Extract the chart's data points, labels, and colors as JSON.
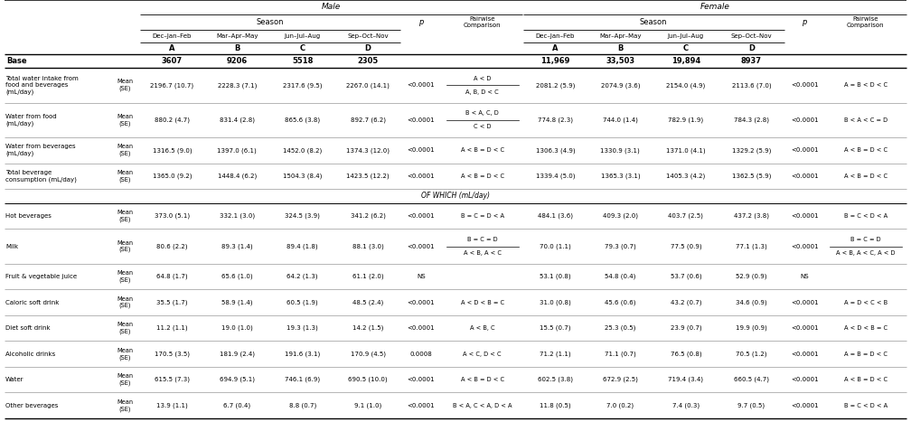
{
  "season_labels": [
    "Dec–Jan–Feb",
    "Mar–Apr–May",
    "Jun–Jul–Aug",
    "Sep–Oct–Nov"
  ],
  "abcd_labels": [
    "A",
    "B",
    "C",
    "D"
  ],
  "male_base": [
    "3607",
    "9206",
    "5518",
    "2305"
  ],
  "female_base": [
    "11,969",
    "33,503",
    "19,894",
    "8937"
  ],
  "rows": [
    {
      "label": "Total water intake from\nfood and beverages\n(mL/day)",
      "stat": "Mean\n(SE)",
      "male_vals": [
        "2196.7 (10.7)",
        "2228.3 (7.1)",
        "2317.6 (9.5)",
        "2267.0 (14.1)"
      ],
      "male_p": "<0.0001",
      "male_pairwise": [
        "A < D",
        "A, B, D < C"
      ],
      "female_vals": [
        "2081.2 (5.9)",
        "2074.9 (3.6)",
        "2154.0 (4.9)",
        "2113.6 (7.0)"
      ],
      "female_p": "<0.0001",
      "female_pairwise": "A = B < D < C",
      "separator": true
    },
    {
      "label": "Water from food\n(mL/day)",
      "stat": "Mean\n(SE)",
      "male_vals": [
        "880.2 (4.7)",
        "831.4 (2.8)",
        "865.6 (3.8)",
        "892.7 (6.2)"
      ],
      "male_p": "<0.0001",
      "male_pairwise": [
        "B < A, C, D",
        "C < D"
      ],
      "female_vals": [
        "774.8 (2.3)",
        "744.0 (1.4)",
        "782.9 (1.9)",
        "784.3 (2.8)"
      ],
      "female_p": "<0.0001",
      "female_pairwise": "B < A < C = D",
      "separator": true
    },
    {
      "label": "Water from beverages\n(mL/day)",
      "stat": "Mean\n(SE)",
      "male_vals": [
        "1316.5 (9.0)",
        "1397.0 (6.1)",
        "1452.0 (8.2)",
        "1374.3 (12.0)"
      ],
      "male_p": "<0.0001",
      "male_pairwise": "A < B = D < C",
      "female_vals": [
        "1306.3 (4.9)",
        "1330.9 (3.1)",
        "1371.0 (4.1)",
        "1329.2 (5.9)"
      ],
      "female_p": "<0.0001",
      "female_pairwise": "A < B = D < C",
      "separator": true
    },
    {
      "label": "Total beverage\nconsumption (mL/day)",
      "stat": "Mean\n(SE)",
      "male_vals": [
        "1365.0 (9.2)",
        "1448.4 (6.2)",
        "1504.3 (8.4)",
        "1423.5 (12.2)"
      ],
      "male_p": "<0.0001",
      "male_pairwise": "A < B = D < C",
      "female_vals": [
        "1339.4 (5.0)",
        "1365.3 (3.1)",
        "1405.3 (4.2)",
        "1362.5 (5.9)"
      ],
      "female_p": "<0.0001",
      "female_pairwise": "A < B = D < C",
      "separator": true
    },
    {
      "label": "OF WHICH (mL/day)",
      "stat": "",
      "male_vals": [
        "",
        "",
        "",
        ""
      ],
      "male_p": "",
      "male_pairwise": "",
      "female_vals": [
        "",
        "",
        "",
        ""
      ],
      "female_p": "",
      "female_pairwise": "",
      "separator": false,
      "italic_center": true
    },
    {
      "label": "Hot beverages",
      "stat": "Mean\n(SE)",
      "male_vals": [
        "373.0 (5.1)",
        "332.1 (3.0)",
        "324.5 (3.9)",
        "341.2 (6.2)"
      ],
      "male_p": "<0.0001",
      "male_pairwise": "B = C = D < A",
      "female_vals": [
        "484.1 (3.6)",
        "409.3 (2.0)",
        "403.7 (2.5)",
        "437.2 (3.8)"
      ],
      "female_p": "<0.0001",
      "female_pairwise": "B = C < D < A",
      "separator": true
    },
    {
      "label": "Milk",
      "stat": "Mean\n(SE)",
      "male_vals": [
        "80.6 (2.2)",
        "89.3 (1.4)",
        "89.4 (1.8)",
        "88.1 (3.0)"
      ],
      "male_p": "<0.0001",
      "male_pairwise": [
        "B = C = D",
        "A < B, A < C"
      ],
      "female_vals": [
        "70.0 (1.1)",
        "79.3 (0.7)",
        "77.5 (0.9)",
        "77.1 (1.3)"
      ],
      "female_p": "<0.0001",
      "female_pairwise": [
        "B = C = D",
        "A < B, A < C, A < D"
      ],
      "separator": true
    },
    {
      "label": "Fruit & vegetable juice",
      "stat": "Mean\n(SE)",
      "male_vals": [
        "64.8 (1.7)",
        "65.6 (1.0)",
        "64.2 (1.3)",
        "61.1 (2.0)"
      ],
      "male_p": "NS",
      "male_pairwise": "",
      "female_vals": [
        "53.1 (0.8)",
        "54.8 (0.4)",
        "53.7 (0.6)",
        "52.9 (0.9)"
      ],
      "female_p": "NS",
      "female_pairwise": "",
      "separator": true
    },
    {
      "label": "Caloric soft drink",
      "stat": "Mean\n(SE)",
      "male_vals": [
        "35.5 (1.7)",
        "58.9 (1.4)",
        "60.5 (1.9)",
        "48.5 (2.4)"
      ],
      "male_p": "<0.0001",
      "male_pairwise": "A < D < B = C",
      "female_vals": [
        "31.0 (0.8)",
        "45.6 (0.6)",
        "43.2 (0.7)",
        "34.6 (0.9)"
      ],
      "female_p": "<0.0001",
      "female_pairwise": "A = D < C < B",
      "separator": true
    },
    {
      "label": "Diet soft drink",
      "stat": "Mean\n(SE)",
      "male_vals": [
        "11.2 (1.1)",
        "19.0 (1.0)",
        "19.3 (1.3)",
        "14.2 (1.5)"
      ],
      "male_p": "<0.0001",
      "male_pairwise": "A < B, C",
      "female_vals": [
        "15.5 (0.7)",
        "25.3 (0.5)",
        "23.9 (0.7)",
        "19.9 (0.9)"
      ],
      "female_p": "<0.0001",
      "female_pairwise": "A < D < B = C",
      "separator": true
    },
    {
      "label": "Alcoholic drinks",
      "stat": "Mean\n(SE)",
      "male_vals": [
        "170.5 (3.5)",
        "181.9 (2.4)",
        "191.6 (3.1)",
        "170.9 (4.5)"
      ],
      "male_p": "0.0008",
      "male_pairwise": "A < C, D < C",
      "female_vals": [
        "71.2 (1.1)",
        "71.1 (0.7)",
        "76.5 (0.8)",
        "70.5 (1.2)"
      ],
      "female_p": "<0.0001",
      "female_pairwise": "A = B = D < C",
      "separator": true
    },
    {
      "label": "Water",
      "stat": "Mean\n(SE)",
      "male_vals": [
        "615.5 (7.3)",
        "694.9 (5.1)",
        "746.1 (6.9)",
        "690.5 (10.0)"
      ],
      "male_p": "<0.0001",
      "male_pairwise": "A < B = D < C",
      "female_vals": [
        "602.5 (3.8)",
        "672.9 (2.5)",
        "719.4 (3.4)",
        "660.5 (4.7)"
      ],
      "female_p": "<0.0001",
      "female_pairwise": "A < B = D < C",
      "separator": true
    },
    {
      "label": "Other beverages",
      "stat": "Mean\n(SE)",
      "male_vals": [
        "13.9 (1.1)",
        "6.7 (0.4)",
        "8.8 (0.7)",
        "9.1 (1.0)"
      ],
      "male_p": "<0.0001",
      "male_pairwise": "B < A, C < A, D < A",
      "female_vals": [
        "11.8 (0.5)",
        "7.0 (0.2)",
        "7.4 (0.3)",
        "9.7 (0.5)"
      ],
      "female_p": "<0.0001",
      "female_pairwise": "B = C < D < A",
      "separator": false
    }
  ]
}
